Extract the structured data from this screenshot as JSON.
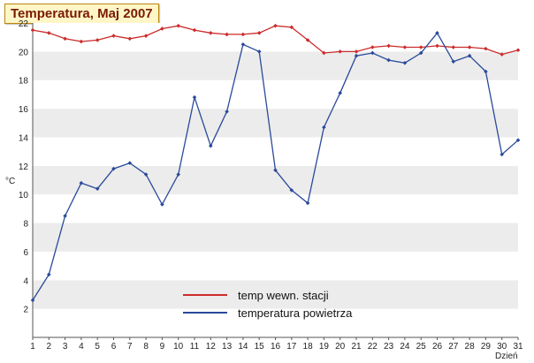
{
  "chart_data": {
    "type": "line",
    "title": "Temperatura, Maj 2007",
    "xlabel": "Dzień",
    "ylabel": "°C",
    "x": [
      1,
      2,
      3,
      4,
      5,
      6,
      7,
      8,
      9,
      10,
      11,
      12,
      13,
      14,
      15,
      16,
      17,
      18,
      19,
      20,
      21,
      22,
      23,
      24,
      25,
      26,
      27,
      28,
      29,
      30,
      31
    ],
    "xlim": [
      1,
      31
    ],
    "ylim": [
      0,
      22
    ],
    "yticks": [
      2,
      4,
      6,
      8,
      10,
      12,
      14,
      16,
      18,
      20,
      22
    ],
    "grid": "horizontal alternating bands",
    "legend": "bottom-center",
    "series": [
      {
        "name": "temp wewn. stacji",
        "color": "#cc2b2b",
        "values": [
          21.5,
          21.3,
          20.9,
          20.7,
          20.8,
          21.1,
          20.9,
          21.1,
          21.6,
          21.8,
          21.5,
          21.3,
          21.2,
          21.2,
          21.3,
          21.8,
          21.7,
          20.8,
          19.9,
          20.0,
          20.0,
          20.3,
          20.4,
          20.3,
          20.3,
          20.4,
          20.3,
          20.3,
          20.2,
          19.8,
          20.1
        ]
      },
      {
        "name": "temperatura powietrza",
        "color": "#2a4a9a",
        "values": [
          2.6,
          4.4,
          8.5,
          10.8,
          10.4,
          11.8,
          12.2,
          11.4,
          9.3,
          11.4,
          16.8,
          13.4,
          15.8,
          20.5,
          20.0,
          11.7,
          10.3,
          9.4,
          14.7,
          17.1,
          19.7,
          19.9,
          19.4,
          19.2,
          19.9,
          21.3,
          19.3,
          19.7,
          18.6,
          12.8,
          13.8
        ]
      }
    ]
  }
}
